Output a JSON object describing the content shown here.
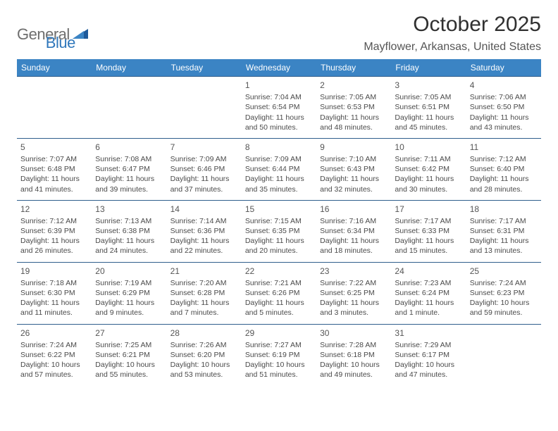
{
  "logo": {
    "text1": "General",
    "text2": "Blue",
    "color_gray": "#6e6e6e",
    "color_blue": "#2f77bb"
  },
  "title": {
    "month": "October 2025",
    "location": "Mayflower, Arkansas, United States"
  },
  "style": {
    "header_bg": "#3b84c4",
    "header_fg": "#ffffff",
    "border_color": "#2f5e8c",
    "page_bg": "#ffffff",
    "text_color": "#4a4a4a",
    "daynum_color": "#555555",
    "cell_fontsize": 10.5,
    "header_fontsize": 12,
    "title_fontsize": 30,
    "location_fontsize": 16
  },
  "weekdays": [
    "Sunday",
    "Monday",
    "Tuesday",
    "Wednesday",
    "Thursday",
    "Friday",
    "Saturday"
  ],
  "weeks": [
    [
      null,
      null,
      null,
      {
        "n": "1",
        "sr": "7:04 AM",
        "ss": "6:54 PM",
        "dl": "11 hours and 50 minutes."
      },
      {
        "n": "2",
        "sr": "7:05 AM",
        "ss": "6:53 PM",
        "dl": "11 hours and 48 minutes."
      },
      {
        "n": "3",
        "sr": "7:05 AM",
        "ss": "6:51 PM",
        "dl": "11 hours and 45 minutes."
      },
      {
        "n": "4",
        "sr": "7:06 AM",
        "ss": "6:50 PM",
        "dl": "11 hours and 43 minutes."
      }
    ],
    [
      {
        "n": "5",
        "sr": "7:07 AM",
        "ss": "6:48 PM",
        "dl": "11 hours and 41 minutes."
      },
      {
        "n": "6",
        "sr": "7:08 AM",
        "ss": "6:47 PM",
        "dl": "11 hours and 39 minutes."
      },
      {
        "n": "7",
        "sr": "7:09 AM",
        "ss": "6:46 PM",
        "dl": "11 hours and 37 minutes."
      },
      {
        "n": "8",
        "sr": "7:09 AM",
        "ss": "6:44 PM",
        "dl": "11 hours and 35 minutes."
      },
      {
        "n": "9",
        "sr": "7:10 AM",
        "ss": "6:43 PM",
        "dl": "11 hours and 32 minutes."
      },
      {
        "n": "10",
        "sr": "7:11 AM",
        "ss": "6:42 PM",
        "dl": "11 hours and 30 minutes."
      },
      {
        "n": "11",
        "sr": "7:12 AM",
        "ss": "6:40 PM",
        "dl": "11 hours and 28 minutes."
      }
    ],
    [
      {
        "n": "12",
        "sr": "7:12 AM",
        "ss": "6:39 PM",
        "dl": "11 hours and 26 minutes."
      },
      {
        "n": "13",
        "sr": "7:13 AM",
        "ss": "6:38 PM",
        "dl": "11 hours and 24 minutes."
      },
      {
        "n": "14",
        "sr": "7:14 AM",
        "ss": "6:36 PM",
        "dl": "11 hours and 22 minutes."
      },
      {
        "n": "15",
        "sr": "7:15 AM",
        "ss": "6:35 PM",
        "dl": "11 hours and 20 minutes."
      },
      {
        "n": "16",
        "sr": "7:16 AM",
        "ss": "6:34 PM",
        "dl": "11 hours and 18 minutes."
      },
      {
        "n": "17",
        "sr": "7:17 AM",
        "ss": "6:33 PM",
        "dl": "11 hours and 15 minutes."
      },
      {
        "n": "18",
        "sr": "7:17 AM",
        "ss": "6:31 PM",
        "dl": "11 hours and 13 minutes."
      }
    ],
    [
      {
        "n": "19",
        "sr": "7:18 AM",
        "ss": "6:30 PM",
        "dl": "11 hours and 11 minutes."
      },
      {
        "n": "20",
        "sr": "7:19 AM",
        "ss": "6:29 PM",
        "dl": "11 hours and 9 minutes."
      },
      {
        "n": "21",
        "sr": "7:20 AM",
        "ss": "6:28 PM",
        "dl": "11 hours and 7 minutes."
      },
      {
        "n": "22",
        "sr": "7:21 AM",
        "ss": "6:26 PM",
        "dl": "11 hours and 5 minutes."
      },
      {
        "n": "23",
        "sr": "7:22 AM",
        "ss": "6:25 PM",
        "dl": "11 hours and 3 minutes."
      },
      {
        "n": "24",
        "sr": "7:23 AM",
        "ss": "6:24 PM",
        "dl": "11 hours and 1 minute."
      },
      {
        "n": "25",
        "sr": "7:24 AM",
        "ss": "6:23 PM",
        "dl": "10 hours and 59 minutes."
      }
    ],
    [
      {
        "n": "26",
        "sr": "7:24 AM",
        "ss": "6:22 PM",
        "dl": "10 hours and 57 minutes."
      },
      {
        "n": "27",
        "sr": "7:25 AM",
        "ss": "6:21 PM",
        "dl": "10 hours and 55 minutes."
      },
      {
        "n": "28",
        "sr": "7:26 AM",
        "ss": "6:20 PM",
        "dl": "10 hours and 53 minutes."
      },
      {
        "n": "29",
        "sr": "7:27 AM",
        "ss": "6:19 PM",
        "dl": "10 hours and 51 minutes."
      },
      {
        "n": "30",
        "sr": "7:28 AM",
        "ss": "6:18 PM",
        "dl": "10 hours and 49 minutes."
      },
      {
        "n": "31",
        "sr": "7:29 AM",
        "ss": "6:17 PM",
        "dl": "10 hours and 47 minutes."
      },
      null
    ]
  ],
  "labels": {
    "sunrise": "Sunrise: ",
    "sunset": "Sunset: ",
    "daylight": "Daylight: "
  }
}
